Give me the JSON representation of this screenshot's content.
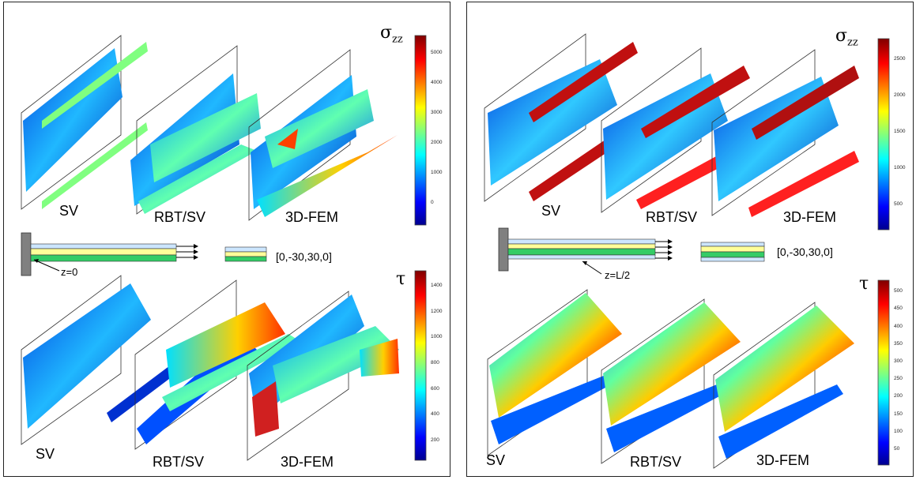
{
  "left": {
    "sigma_symbol": "σ",
    "sigma_sub": "zz",
    "tau_symbol": "τ",
    "sigma_ticks": [
      "5000",
      "4000",
      "3000",
      "2000",
      "1000",
      "0"
    ],
    "tau_ticks": [
      "1400",
      "1200",
      "1000",
      "800",
      "600",
      "400",
      "200"
    ],
    "top_labels": [
      "SV",
      "RBT/SV",
      "3D-FEM"
    ],
    "bottom_labels": [
      "SV",
      "RBT/SV",
      "3D-FEM"
    ],
    "layup": "[0,-30,30,0]",
    "z_label": "z=0"
  },
  "right": {
    "sigma_symbol": "σ",
    "sigma_sub": "zz",
    "tau_symbol": "τ",
    "sigma_ticks": [
      "2500",
      "2000",
      "1500",
      "1000",
      "500"
    ],
    "tau_ticks": [
      "500",
      "450",
      "400",
      "350",
      "300",
      "250",
      "200",
      "150",
      "100",
      "50"
    ],
    "top_labels": [
      "SV",
      "RBT/SV",
      "3D-FEM"
    ],
    "bottom_labels": [
      "SV",
      "RBT/SV",
      "3D-FEM"
    ],
    "layup": "[0,-30,30,0]",
    "z_label": "z=L/2"
  },
  "colors": {
    "jet": [
      "#00008f",
      "#0000ff",
      "#0080ff",
      "#00ffff",
      "#80ff80",
      "#ffff00",
      "#ff8000",
      "#ff0000",
      "#800000"
    ],
    "layer_yellow": "#ffff99",
    "layer_green": "#33cc66",
    "layer_lightblue": "#cce6ff",
    "clamp_gray": "#808080"
  }
}
